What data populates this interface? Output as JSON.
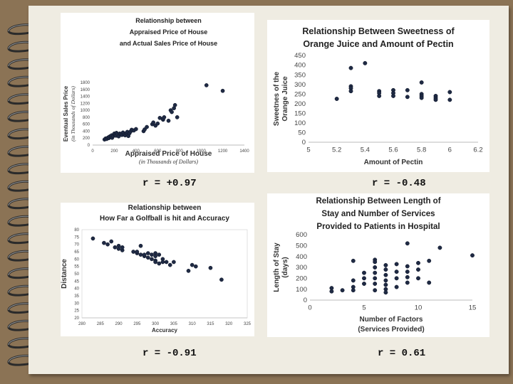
{
  "colors": {
    "background": "#8b7355",
    "page": "#efece2",
    "point": "#1f2a44"
  },
  "r_labels": [
    "r = +0.97",
    "r = -0.48",
    "r = -0.91",
    "r = 0.61"
  ],
  "chart_data": [
    {
      "type": "scatter",
      "title": [
        "Relationship between",
        "Appraised Price of House",
        "and Actual Sales Price of House"
      ],
      "xlabel": "Appraised Price of House",
      "xlabel_sub": "(in Thousands of Dollars)",
      "ylabel": "Eventual Sales Price",
      "ylabel_sub": "(in Thousands of Dollars)",
      "xlim": [
        0,
        1400
      ],
      "ylim": [
        0,
        1800
      ],
      "xticks": [
        "0",
        "200",
        "400",
        "600",
        "800",
        "1000",
        "1200",
        "1400"
      ],
      "yticks": [
        "0",
        "200",
        "400",
        "600",
        "800",
        "1000",
        "1200",
        "1400",
        "1600",
        "1800"
      ],
      "x": [
        110,
        120,
        130,
        140,
        150,
        150,
        160,
        170,
        175,
        180,
        190,
        200,
        200,
        210,
        215,
        220,
        230,
        240,
        250,
        260,
        270,
        280,
        290,
        300,
        310,
        320,
        320,
        330,
        340,
        350,
        360,
        380,
        400,
        470,
        480,
        500,
        550,
        560,
        580,
        600,
        620,
        650,
        650,
        660,
        700,
        720,
        730,
        750,
        760,
        780,
        1050,
        1200
      ],
      "y": [
        160,
        190,
        175,
        210,
        200,
        230,
        250,
        240,
        280,
        210,
        260,
        300,
        330,
        290,
        270,
        350,
        310,
        250,
        330,
        320,
        290,
        360,
        300,
        280,
        340,
        310,
        380,
        260,
        340,
        390,
        440,
        420,
        460,
        400,
        450,
        520,
        600,
        650,
        560,
        620,
        780,
        730,
        760,
        800,
        700,
        1000,
        950,
        1060,
        1150,
        800,
        1720,
        1560
      ]
    },
    {
      "type": "scatter",
      "title": [
        "Relationship Between Sweetness of",
        "Orange Juice and Amount of Pectin"
      ],
      "xlabel": "Amount of Pectin",
      "ylabel": "Sweetnes of the Orange Juice",
      "xlim": [
        5,
        6.2
      ],
      "ylim": [
        0,
        450
      ],
      "xticks": [
        "5",
        "5.2",
        "5.4",
        "5.6",
        "5.8",
        "6",
        "6.2"
      ],
      "yticks": [
        "0",
        "50",
        "100",
        "150",
        "200",
        "250",
        "300",
        "350",
        "400",
        "450"
      ],
      "x": [
        5.2,
        5.3,
        5.3,
        5.3,
        5.3,
        5.4,
        5.5,
        5.5,
        5.5,
        5.6,
        5.6,
        5.6,
        5.7,
        5.7,
        5.8,
        5.8,
        5.8,
        5.8,
        5.9,
        5.9,
        5.9,
        6,
        6
      ],
      "y": [
        225,
        385,
        290,
        280,
        265,
        410,
        265,
        255,
        240,
        270,
        255,
        240,
        270,
        235,
        310,
        250,
        240,
        230,
        240,
        230,
        220,
        260,
        220
      ]
    },
    {
      "type": "scatter",
      "title": [
        "Relationship between",
        "How Far a Golfball is hit and Accuracy"
      ],
      "xlabel": "Accuracy",
      "ylabel": "Distance",
      "xlim": [
        280,
        325
      ],
      "ylim": [
        20,
        80
      ],
      "xticks": [
        "280",
        "285",
        "290",
        "295",
        "300",
        "305",
        "310",
        "315",
        "320",
        "325"
      ],
      "yticks": [
        "20",
        "25",
        "30",
        "35",
        "40",
        "45",
        "50",
        "55",
        "60",
        "65",
        "70",
        "75",
        "80"
      ],
      "x": [
        283,
        286,
        287,
        288,
        289,
        290,
        290,
        291,
        291,
        294,
        295,
        295,
        296,
        296,
        297,
        297,
        298,
        298,
        299,
        299,
        300,
        300,
        300,
        300,
        301,
        301,
        302,
        302,
        303,
        304,
        305,
        309,
        310,
        311,
        315,
        318
      ],
      "y": [
        74,
        71,
        70,
        72,
        68,
        69,
        67,
        66,
        68,
        65,
        64,
        65,
        63,
        69,
        62,
        63,
        61,
        64,
        60,
        63,
        64,
        62,
        59,
        58,
        63,
        57,
        60,
        58,
        58,
        56,
        58,
        52,
        56,
        55,
        54,
        46
      ]
    },
    {
      "type": "scatter",
      "title": [
        "Relationship Between Length of",
        "Stay and Number of Services",
        "Provided to Patients in Hospital"
      ],
      "xlabel": "Number of Factors",
      "xlabel_sub": "(Services Provided)",
      "ylabel": "Length of Stay (days)",
      "xlim": [
        0,
        15
      ],
      "ylim": [
        0,
        600
      ],
      "xticks": [
        "0",
        "5",
        "10",
        "15"
      ],
      "yticks": [
        "0",
        "100",
        "200",
        "300",
        "400",
        "500",
        "600"
      ],
      "x": [
        2,
        2,
        3,
        4,
        4,
        4,
        4,
        5,
        5,
        5,
        6,
        6,
        6,
        6,
        6,
        6,
        6,
        7,
        7,
        7,
        7,
        7,
        7,
        7,
        8,
        8,
        8,
        8,
        9,
        9,
        9,
        9,
        9,
        10,
        10,
        10,
        11,
        11,
        12,
        15
      ],
      "y": [
        110,
        80,
        90,
        360,
        180,
        120,
        90,
        250,
        150,
        200,
        370,
        350,
        300,
        250,
        200,
        150,
        90,
        320,
        280,
        230,
        180,
        140,
        100,
        70,
        330,
        260,
        200,
        120,
        520,
        310,
        260,
        210,
        160,
        340,
        280,
        200,
        360,
        160,
        480,
        410
      ]
    }
  ]
}
